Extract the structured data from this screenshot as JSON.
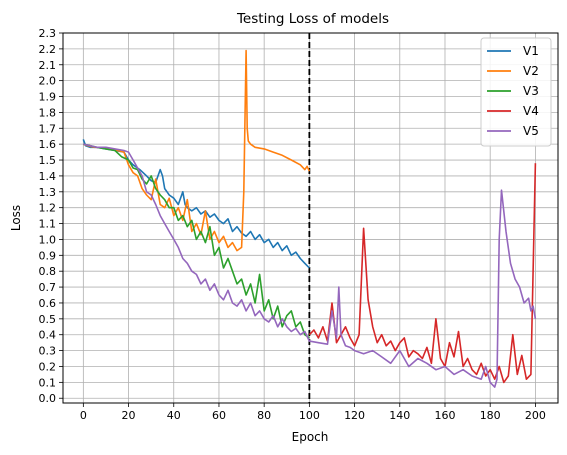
{
  "chart_data": {
    "type": "line",
    "title": "Testing Loss of models",
    "xlabel": "Epoch",
    "ylabel": "Loss",
    "xlim": [
      -9,
      210
    ],
    "ylim": [
      -0.03,
      2.3
    ],
    "xticks": [
      0,
      20,
      40,
      60,
      80,
      100,
      120,
      140,
      160,
      180,
      200
    ],
    "yticks": [
      0.0,
      0.1,
      0.2,
      0.3,
      0.4,
      0.5,
      0.6,
      0.7,
      0.8,
      0.9,
      1.0,
      1.1,
      1.2,
      1.3,
      1.4,
      1.5,
      1.6,
      1.7,
      1.8,
      1.9,
      2.0,
      2.1,
      2.2,
      2.3
    ],
    "grid": true,
    "legend_position": "top-right",
    "vline": {
      "x": 100,
      "style": "dashed",
      "color": "#000000"
    },
    "series": [
      {
        "name": "V1",
        "color": "#1f77b4",
        "x": [
          0,
          1,
          3,
          6,
          10,
          14,
          18,
          20,
          22,
          25,
          28,
          30,
          32,
          34,
          35,
          36,
          37,
          38,
          40,
          42,
          44,
          45,
          46,
          48,
          50,
          52,
          54,
          56,
          58,
          60,
          62,
          64,
          66,
          68,
          70,
          72,
          74,
          76,
          78,
          80,
          82,
          84,
          86,
          88,
          90,
          92,
          94,
          96,
          98,
          100
        ],
        "y": [
          1.63,
          1.59,
          1.58,
          1.58,
          1.57,
          1.56,
          1.55,
          1.5,
          1.47,
          1.44,
          1.4,
          1.37,
          1.36,
          1.44,
          1.4,
          1.32,
          1.3,
          1.28,
          1.26,
          1.22,
          1.3,
          1.22,
          1.2,
          1.18,
          1.2,
          1.16,
          1.18,
          1.14,
          1.16,
          1.12,
          1.1,
          1.13,
          1.05,
          1.08,
          1.04,
          1.02,
          1.05,
          1.0,
          1.03,
          0.98,
          1.0,
          0.95,
          0.98,
          0.93,
          0.96,
          0.9,
          0.92,
          0.88,
          0.85,
          0.82
        ]
      },
      {
        "name": "V2",
        "color": "#ff7f0e",
        "x": [
          0,
          2,
          5,
          8,
          12,
          15,
          18,
          20,
          22,
          24,
          26,
          28,
          30,
          32,
          34,
          36,
          38,
          40,
          42,
          44,
          46,
          48,
          50,
          52,
          54,
          56,
          58,
          60,
          62,
          64,
          66,
          68,
          70,
          71,
          72,
          72.5,
          73,
          74,
          76,
          80,
          84,
          88,
          92,
          96,
          98,
          99,
          100
        ],
        "y": [
          1.6,
          1.59,
          1.58,
          1.58,
          1.57,
          1.56,
          1.55,
          1.47,
          1.42,
          1.4,
          1.32,
          1.28,
          1.25,
          1.38,
          1.22,
          1.2,
          1.26,
          1.15,
          1.2,
          1.12,
          1.25,
          1.05,
          1.1,
          1.03,
          1.18,
          1.0,
          1.05,
          0.98,
          1.02,
          0.95,
          0.98,
          0.93,
          0.95,
          1.3,
          2.19,
          1.7,
          1.62,
          1.6,
          1.58,
          1.57,
          1.55,
          1.53,
          1.5,
          1.47,
          1.44,
          1.46,
          1.43
        ]
      },
      {
        "name": "V3",
        "color": "#2ca02c",
        "x": [
          0,
          3,
          6,
          10,
          14,
          17,
          20,
          22,
          24,
          26,
          28,
          30,
          32,
          34,
          36,
          38,
          40,
          42,
          44,
          46,
          48,
          50,
          52,
          54,
          56,
          58,
          60,
          62,
          64,
          66,
          68,
          70,
          72,
          74,
          76,
          78,
          80,
          82,
          84,
          86,
          88,
          90,
          92,
          94,
          96,
          98,
          100
        ],
        "y": [
          1.6,
          1.59,
          1.58,
          1.57,
          1.56,
          1.52,
          1.5,
          1.45,
          1.44,
          1.38,
          1.35,
          1.4,
          1.32,
          1.28,
          1.25,
          1.2,
          1.2,
          1.12,
          1.15,
          1.08,
          1.12,
          1.0,
          1.05,
          0.98,
          1.08,
          0.9,
          0.95,
          0.82,
          0.88,
          0.8,
          0.72,
          0.75,
          0.65,
          0.72,
          0.6,
          0.78,
          0.55,
          0.62,
          0.5,
          0.58,
          0.45,
          0.52,
          0.55,
          0.45,
          0.48,
          0.4,
          0.38
        ]
      },
      {
        "name": "V4",
        "color": "#d62728",
        "x": [
          100,
          102,
          104,
          106,
          108,
          110,
          112,
          114,
          116,
          118,
          120,
          122,
          124,
          126,
          128,
          130,
          132,
          134,
          136,
          138,
          140,
          142,
          144,
          146,
          148,
          150,
          152,
          154,
          156,
          158,
          160,
          162,
          164,
          166,
          168,
          170,
          172,
          174,
          176,
          178,
          180,
          182,
          184,
          186,
          188,
          190,
          192,
          194,
          196,
          198,
          200
        ],
        "y": [
          0.4,
          0.43,
          0.38,
          0.45,
          0.36,
          0.6,
          0.35,
          0.4,
          0.45,
          0.38,
          0.33,
          0.4,
          1.07,
          0.62,
          0.45,
          0.35,
          0.4,
          0.33,
          0.36,
          0.3,
          0.35,
          0.38,
          0.26,
          0.3,
          0.28,
          0.25,
          0.32,
          0.22,
          0.5,
          0.25,
          0.2,
          0.35,
          0.26,
          0.42,
          0.2,
          0.25,
          0.18,
          0.15,
          0.22,
          0.14,
          0.18,
          0.12,
          0.2,
          0.1,
          0.14,
          0.4,
          0.15,
          0.27,
          0.12,
          0.15,
          1.48
        ]
      },
      {
        "name": "V5",
        "color": "#9467bd",
        "x": [
          0,
          3,
          6,
          10,
          14,
          18,
          20,
          22,
          24,
          26,
          28,
          30,
          32,
          34,
          36,
          38,
          40,
          42,
          44,
          46,
          48,
          50,
          52,
          54,
          56,
          58,
          60,
          62,
          64,
          66,
          68,
          70,
          72,
          74,
          76,
          78,
          80,
          82,
          84,
          86,
          88,
          90,
          92,
          94,
          96,
          98,
          100,
          104,
          108,
          110,
          112,
          113,
          114,
          116,
          118,
          120,
          124,
          128,
          132,
          136,
          140,
          144,
          148,
          152,
          156,
          160,
          164,
          168,
          172,
          176,
          178,
          180,
          182,
          183,
          184,
          185,
          187,
          189,
          191,
          193,
          195,
          197,
          198,
          199,
          200
        ],
        "y": [
          1.6,
          1.59,
          1.58,
          1.58,
          1.57,
          1.56,
          1.55,
          1.5,
          1.45,
          1.4,
          1.3,
          1.28,
          1.22,
          1.15,
          1.1,
          1.05,
          1.0,
          0.95,
          0.88,
          0.85,
          0.8,
          0.78,
          0.72,
          0.75,
          0.68,
          0.72,
          0.65,
          0.62,
          0.68,
          0.6,
          0.58,
          0.62,
          0.55,
          0.6,
          0.52,
          0.55,
          0.5,
          0.48,
          0.52,
          0.45,
          0.5,
          0.45,
          0.42,
          0.44,
          0.4,
          0.42,
          0.36,
          0.35,
          0.34,
          0.55,
          0.38,
          0.7,
          0.4,
          0.33,
          0.32,
          0.3,
          0.28,
          0.3,
          0.26,
          0.22,
          0.3,
          0.2,
          0.25,
          0.22,
          0.18,
          0.2,
          0.15,
          0.18,
          0.14,
          0.12,
          0.2,
          0.1,
          0.07,
          0.12,
          1.0,
          1.31,
          1.05,
          0.85,
          0.75,
          0.7,
          0.6,
          0.63,
          0.55,
          0.58,
          0.5
        ]
      }
    ]
  }
}
